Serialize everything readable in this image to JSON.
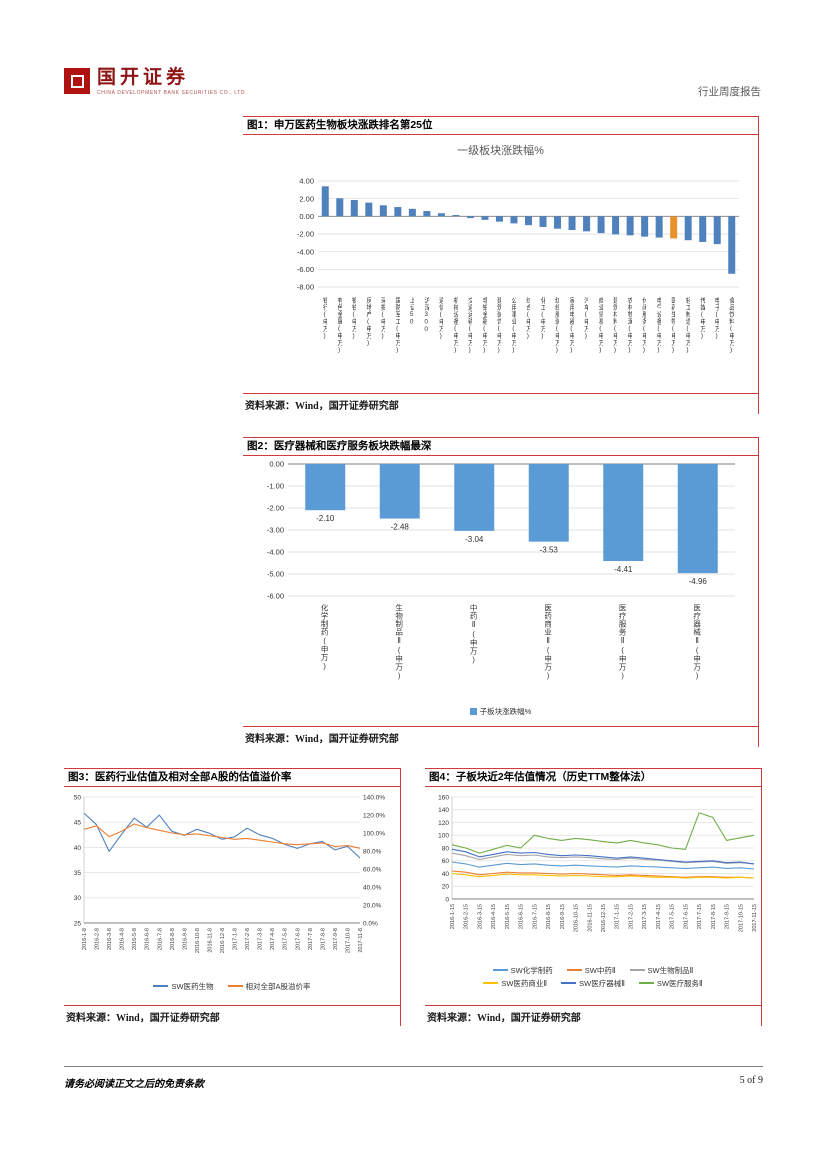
{
  "header": {
    "brand_name": "国开证券",
    "brand_sub": "CHINA DEVELOPMENT BANK SECURITIES CO., LTD.",
    "report_type": "行业周度报告"
  },
  "figures": {
    "fig1": {
      "title": "图1：申万医药生物板块涨跌排名第25位",
      "source": "资料来源：Wind，国开证券研究部"
    },
    "fig2": {
      "title": "图2：医疗器械和医疗服务板块跌幅最深",
      "source": "资料来源：Wind，国开证券研究部"
    },
    "fig3": {
      "title": "图3：医药行业估值及相对全部A股的估值溢价率",
      "source": "资料来源：Wind，国开证券研究部"
    },
    "fig4": {
      "title": "图4：子板块近2年估值情况（历史TTM整体法）",
      "source": "资料来源：Wind，国开证券研究部"
    }
  },
  "footer": {
    "disclaimer": "请务必阅读正文之后的免责条款",
    "page": "5 of 9"
  },
  "chart_data": [
    {
      "id": "chart1",
      "type": "bar",
      "title": "一级板块涨跌幅%",
      "categories": [
        "银行(申万)",
        "有色金属(申万)",
        "钢铁(申万)",
        "房地产(申万)",
        "采掘(申万)",
        "国防军工(申万)",
        "上证50",
        "沪深300",
        "通信(申万)",
        "机械设备(申万)",
        "交通运输(申万)",
        "非银金融(申万)",
        "建筑装饰(申万)",
        "公用事业(申万)",
        "综合(申万)",
        "化工(申万)",
        "纺织服装(申万)",
        "家用电器(申万)",
        "汽车(申万)",
        "商业贸易(申万)",
        "建筑材料(申万)",
        "农林牧渔(申万)",
        "休闲服务(申万)",
        "电气设备(申万)",
        "医药生物(申万)",
        "轻工制造(申万)",
        "传媒(申万)",
        "电子(申万)",
        "食品饮料(申万)"
      ],
      "values": [
        3.4,
        2.05,
        1.85,
        1.55,
        1.25,
        1.05,
        0.85,
        0.6,
        0.35,
        0.15,
        -0.2,
        -0.4,
        -0.6,
        -0.8,
        -1.0,
        -1.2,
        -1.4,
        -1.55,
        -1.7,
        -1.9,
        -2.05,
        -2.15,
        -2.3,
        -2.4,
        -2.5,
        -2.7,
        -2.9,
        -3.15,
        -6.5
      ],
      "bar_color": "#4F81BD",
      "highlight_index": 24,
      "highlight_color": "#E8912D",
      "ylim": [
        -8,
        4
      ],
      "ytick_values": [
        4,
        2,
        0,
        -2,
        -4,
        -6,
        -8
      ],
      "ytick_decimals": 2,
      "grid": true
    },
    {
      "id": "chart2",
      "type": "bar",
      "categories": [
        "化学制药(申万)",
        "生物制品Ⅱ(申万)",
        "中药Ⅱ(申万)",
        "医药商业Ⅱ(申万)",
        "医疗服务Ⅱ(申万)",
        "医疗器械Ⅱ(申万)"
      ],
      "values": [
        -2.1,
        -2.48,
        -3.04,
        -3.53,
        -4.41,
        -4.96
      ],
      "bar_color": "#5B9BD5",
      "ylim": [
        -6,
        0
      ],
      "ytick_values": [
        0,
        -1,
        -2,
        -3,
        -4,
        -5,
        -6
      ],
      "ytick_decimals": 2,
      "show_value_labels": true,
      "grid": true,
      "legend": [
        {
          "label": "子板块涨跌幅%",
          "color": "#5B9BD5"
        }
      ]
    },
    {
      "id": "chart3",
      "type": "line",
      "x_labels": [
        "2016-1-8",
        "2016-2-8",
        "2016-3-8",
        "2016-4-8",
        "2016-5-8",
        "2016-6-8",
        "2016-7-8",
        "2016-8-8",
        "2016-9-8",
        "2016-10-8",
        "2016-11-8",
        "2016-12-8",
        "2017-1-8",
        "2017-2-8",
        "2017-3-8",
        "2017-4-8",
        "2017-5-8",
        "2017-6-8",
        "2017-7-8",
        "2017-8-8",
        "2017-9-8",
        "2017-10-8",
        "2017-11-8"
      ],
      "left_axis": {
        "min": 25,
        "max": 50,
        "tick_values": [
          25,
          30,
          35,
          40,
          45,
          50
        ]
      },
      "right_axis": {
        "min": 0,
        "max": 140,
        "tick_values": [
          0,
          20,
          40,
          60,
          80,
          100,
          120,
          140
        ],
        "suffix": "%",
        "decimals": 1
      },
      "series": [
        {
          "name": "SW医药生物",
          "color": "#4F81BD",
          "axis": "left",
          "values": [
            46.8,
            44.5,
            39.2,
            42.6,
            45.8,
            44.0,
            46.4,
            43.2,
            42.4,
            43.6,
            42.8,
            41.6,
            42.1,
            43.8,
            42.5,
            41.8,
            40.6,
            39.8,
            40.7,
            41.2,
            39.5,
            40.2,
            37.9
          ]
        },
        {
          "name": "相对全部A股溢价率",
          "color": "#ED7D31",
          "axis": "right",
          "values": [
            104,
            108,
            96,
            102,
            110,
            106,
            103,
            100,
            98,
            99,
            97,
            95,
            93,
            94,
            92,
            90,
            88,
            87,
            88,
            89,
            85,
            86,
            83
          ]
        }
      ]
    },
    {
      "id": "chart4",
      "type": "line",
      "x_labels": [
        "2016-1-15",
        "2016-2-15",
        "2016-3-15",
        "2016-4-15",
        "2016-5-15",
        "2016-6-15",
        "2016-7-15",
        "2016-8-15",
        "2016-9-15",
        "2016-10-15",
        "2016-11-15",
        "2016-12-15",
        "2017-1-15",
        "2017-2-15",
        "2017-3-15",
        "2017-4-15",
        "2017-5-15",
        "2017-6-15",
        "2017-7-15",
        "2017-8-15",
        "2017-9-15",
        "2017-10-15",
        "2017-11-15"
      ],
      "left_axis": {
        "min": 0,
        "max": 160,
        "tick_values": [
          0,
          20,
          40,
          60,
          80,
          100,
          120,
          140,
          160
        ]
      },
      "legend_rows": 2,
      "series": [
        {
          "name": "SW化学制药",
          "color": "#5B9BD5",
          "values": [
            58,
            55,
            50,
            53,
            56,
            54,
            55,
            53,
            52,
            53,
            52,
            51,
            50,
            52,
            51,
            50,
            49,
            48,
            49,
            50,
            48,
            49,
            47
          ]
        },
        {
          "name": "SW中药Ⅱ",
          "color": "#ED7D31",
          "values": [
            44,
            42,
            38,
            40,
            42,
            41,
            41,
            40,
            39,
            40,
            39,
            38,
            37,
            38,
            37,
            36,
            35,
            34,
            35,
            35,
            34,
            34,
            33
          ]
        },
        {
          "name": "SW生物制品Ⅱ",
          "color": "#A5A5A5",
          "values": [
            72,
            68,
            62,
            66,
            70,
            68,
            69,
            66,
            65,
            66,
            65,
            63,
            62,
            64,
            62,
            61,
            59,
            57,
            58,
            59,
            56,
            57,
            55
          ]
        },
        {
          "name": "SW医药商业Ⅱ",
          "color": "#FFC000",
          "values": [
            40,
            38,
            35,
            37,
            39,
            38,
            38,
            37,
            36,
            37,
            36,
            35,
            35,
            36,
            35,
            34,
            34,
            33,
            34,
            34,
            33,
            34,
            33
          ]
        },
        {
          "name": "SW医疗器械Ⅱ",
          "color": "#4472C4",
          "values": [
            78,
            74,
            66,
            70,
            74,
            72,
            73,
            70,
            68,
            69,
            68,
            66,
            64,
            66,
            64,
            62,
            60,
            58,
            59,
            60,
            57,
            58,
            55
          ]
        },
        {
          "name": "SW医疗服务Ⅱ",
          "color": "#70AD47",
          "values": [
            85,
            80,
            72,
            78,
            84,
            80,
            100,
            95,
            92,
            95,
            93,
            90,
            88,
            92,
            88,
            85,
            80,
            78,
            135,
            128,
            92,
            96,
            100
          ]
        }
      ]
    }
  ]
}
